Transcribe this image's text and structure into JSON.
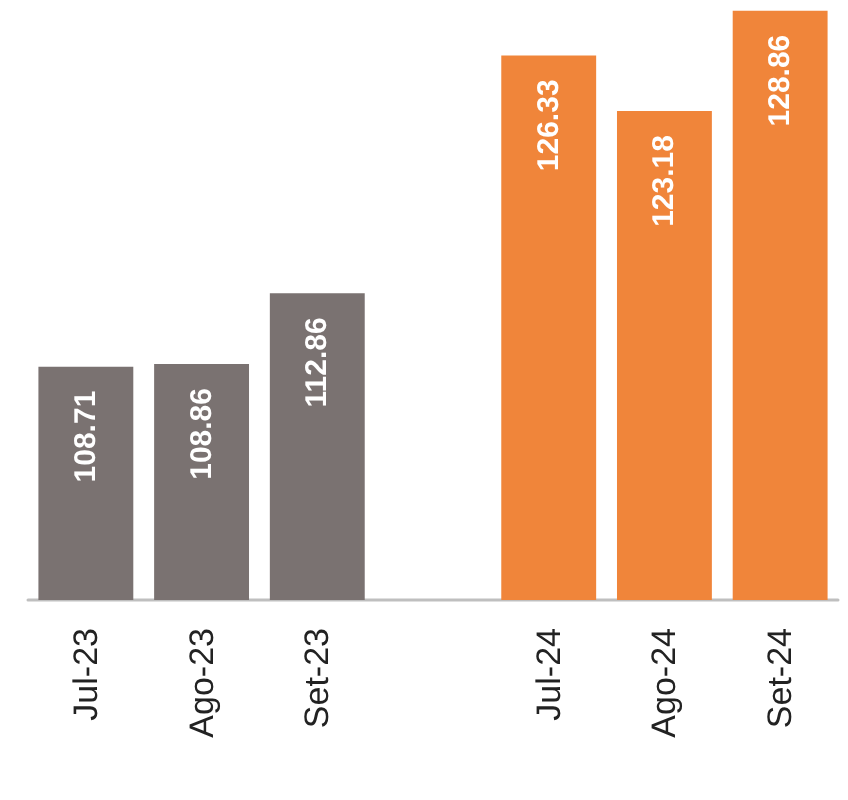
{
  "chart_data": {
    "type": "bar",
    "categories": [
      "Jul-23",
      "Ago-23",
      "Set-23",
      null,
      "Jul-24",
      "Ago-24",
      "Set-24"
    ],
    "values": [
      108.71,
      108.86,
      112.86,
      null,
      126.33,
      123.18,
      128.86
    ],
    "colors": [
      "#7a7271",
      "#7a7271",
      "#7a7271",
      null,
      "#f0853a",
      "#f0853a",
      "#f0853a"
    ],
    "ylim": [
      95.5,
      128.9
    ],
    "tick_labels": "x",
    "data_labels": true
  }
}
